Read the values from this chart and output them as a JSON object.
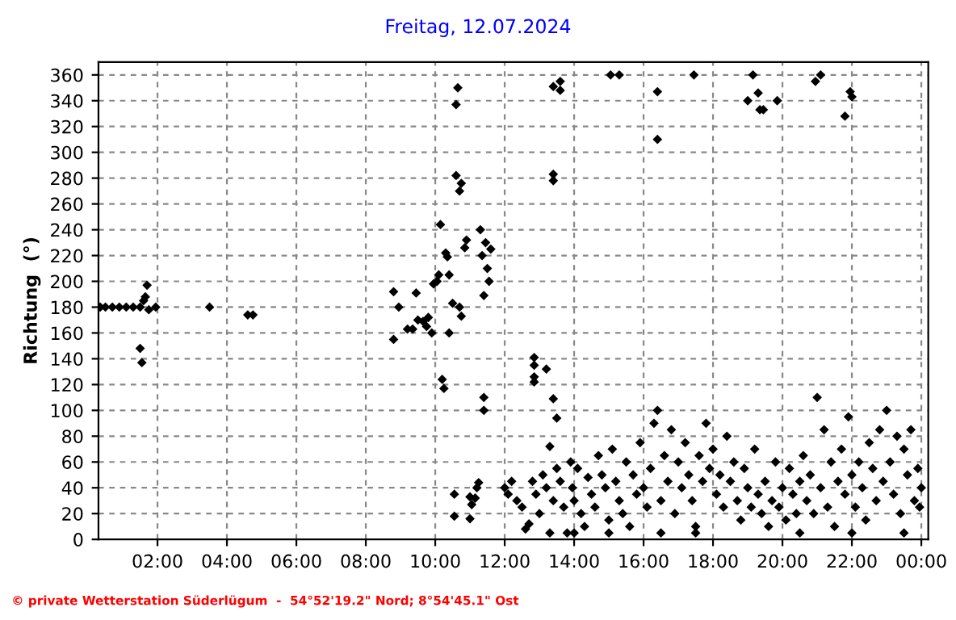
{
  "chart_data": {
    "type": "scatter",
    "title": "Freitag, 12.07.2024",
    "ylabel": "Richtung  (°)",
    "marker": "diamond",
    "grid": true,
    "legend": false,
    "xlim": [
      0.3,
      24.2
    ],
    "xticks": [
      {
        "value": 2,
        "label": "02:00"
      },
      {
        "value": 4,
        "label": "04:00"
      },
      {
        "value": 6,
        "label": "06:00"
      },
      {
        "value": 8,
        "label": "08:00"
      },
      {
        "value": 10,
        "label": "10:00"
      },
      {
        "value": 12,
        "label": "12:00"
      },
      {
        "value": 14,
        "label": "14:00"
      },
      {
        "value": 16,
        "label": "16:00"
      },
      {
        "value": 18,
        "label": "18:00"
      },
      {
        "value": 20,
        "label": "20:00"
      },
      {
        "value": 22,
        "label": "22:00"
      },
      {
        "value": 24,
        "label": "00:00"
      }
    ],
    "ylim": [
      0,
      370
    ],
    "yticks": [
      0,
      20,
      40,
      60,
      80,
      100,
      120,
      140,
      160,
      180,
      200,
      220,
      240,
      260,
      280,
      300,
      320,
      340,
      360
    ],
    "annotations": [
      "© private Wetterstation Süderlügum  -  54°52'19.2\" Nord; 8°54'45.1\" Ost"
    ],
    "series": [
      {
        "color": "#000000",
        "x": [
          0.35,
          0.5,
          0.7,
          0.9,
          1.1,
          1.3,
          1.5,
          1.5,
          1.55,
          1.6,
          1.65,
          1.7,
          1.75,
          1.95,
          3.5,
          4.6,
          4.75,
          8.8,
          8.8,
          8.95,
          9.2,
          9.35,
          9.45,
          9.5,
          9.65,
          9.75,
          9.8,
          9.9,
          9.95,
          10.05,
          10.1,
          10.15,
          10.2,
          10.25,
          10.3,
          10.35,
          10.4,
          10.4,
          10.5,
          10.55,
          10.55,
          10.6,
          10.65,
          10.6,
          10.7,
          10.75,
          10.7,
          10.75,
          10.85,
          10.9,
          11.0,
          11.05,
          11.0,
          11.15,
          11.2,
          11.25,
          11.3,
          11.35,
          11.4,
          11.4,
          11.4,
          11.45,
          11.5,
          11.55,
          11.6,
          12.85,
          12.85,
          12.85,
          12.85,
          13.2,
          13.4,
          13.6,
          13.6,
          13.4,
          13.4,
          13.4,
          13.5,
          13.3,
          15.05,
          15.3,
          16.4,
          16.4,
          17.45,
          19.0,
          19.15,
          19.3,
          19.35,
          19.45,
          19.85,
          20.95,
          21.1,
          21.8,
          21.95,
          22.0,
          12.0,
          12.1,
          12.2,
          12.35,
          12.5,
          12.6,
          12.7,
          12.8,
          12.9,
          13.0,
          13.1,
          13.2,
          13.3,
          13.4,
          13.5,
          13.6,
          13.7,
          13.8,
          13.9,
          13.95,
          14.0,
          14.1,
          14.2,
          14.3,
          14.4,
          14.5,
          14.6,
          14.7,
          14.8,
          14.9,
          15.0,
          15.1,
          15.2,
          15.3,
          15.4,
          15.5,
          15.6,
          15.7,
          15.8,
          15.9,
          16.0,
          16.1,
          16.2,
          16.3,
          16.4,
          16.5,
          16.6,
          16.7,
          16.8,
          16.9,
          17.0,
          17.1,
          17.2,
          17.3,
          17.4,
          17.5,
          17.6,
          17.7,
          17.8,
          17.9,
          18.0,
          18.1,
          18.2,
          18.3,
          18.4,
          18.5,
          18.6,
          18.7,
          18.8,
          18.9,
          19.0,
          19.1,
          19.2,
          19.3,
          19.4,
          19.5,
          19.6,
          19.7,
          19.8,
          19.9,
          20.0,
          20.1,
          20.2,
          20.3,
          20.4,
          20.5,
          20.6,
          20.7,
          20.8,
          20.9,
          21.0,
          21.1,
          21.2,
          21.3,
          21.4,
          21.5,
          21.6,
          21.7,
          21.8,
          21.9,
          22.0,
          22.1,
          22.2,
          22.3,
          22.4,
          22.5,
          22.6,
          22.7,
          22.8,
          22.9,
          23.0,
          23.1,
          23.2,
          23.3,
          23.4,
          23.5,
          23.6,
          23.7,
          23.8,
          23.9,
          24.0,
          23.95,
          23.5,
          22.0,
          20.5,
          17.5,
          16.5,
          15.0,
          14.0
        ],
        "values": [
          180,
          180,
          180,
          180,
          180,
          180,
          180,
          148,
          137,
          185,
          188,
          197,
          178,
          180,
          180,
          174,
          174,
          155,
          192,
          180,
          163,
          163,
          191,
          170,
          169,
          165,
          172,
          160,
          198,
          200,
          205,
          244,
          124,
          117,
          222,
          219,
          205,
          160,
          183,
          35,
          18,
          337,
          350,
          282,
          270,
          276,
          180,
          173,
          226,
          232,
          33,
          27,
          16,
          32,
          40,
          44,
          240,
          220,
          110,
          100,
          189,
          230,
          210,
          200,
          225,
          141,
          135,
          126,
          122,
          132,
          351,
          355,
          348,
          283,
          278,
          109,
          94,
          72,
          360,
          360,
          347,
          310,
          360,
          340,
          360,
          346,
          333,
          333,
          340,
          355,
          360,
          328,
          347,
          343,
          40,
          35,
          45,
          30,
          25,
          8,
          12,
          45,
          35,
          20,
          50,
          40,
          5,
          30,
          55,
          45,
          25,
          5,
          60,
          40,
          30,
          55,
          20,
          10,
          48,
          35,
          25,
          65,
          50,
          40,
          15,
          70,
          45,
          30,
          20,
          60,
          10,
          50,
          35,
          75,
          40,
          25,
          55,
          90,
          100,
          30,
          65,
          45,
          85,
          20,
          60,
          40,
          75,
          50,
          30,
          10,
          65,
          45,
          90,
          55,
          70,
          35,
          50,
          25,
          80,
          45,
          60,
          30,
          15,
          55,
          40,
          25,
          70,
          35,
          20,
          45,
          10,
          30,
          60,
          25,
          40,
          15,
          55,
          35,
          20,
          45,
          65,
          30,
          50,
          20,
          110,
          40,
          85,
          25,
          60,
          10,
          45,
          70,
          35,
          95,
          50,
          25,
          60,
          40,
          15,
          75,
          55,
          30,
          85,
          45,
          100,
          60,
          35,
          80,
          20,
          70,
          50,
          85,
          30,
          55,
          40,
          25,
          5,
          5,
          5,
          5,
          5,
          5,
          5
        ]
      }
    ]
  }
}
